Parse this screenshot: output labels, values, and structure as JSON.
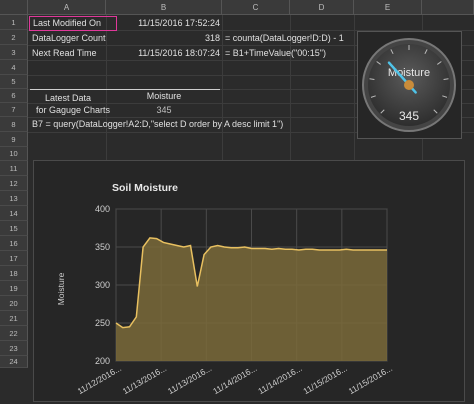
{
  "columns": [
    "A",
    "B",
    "C",
    "D",
    "E"
  ],
  "rows": [
    "1",
    "2",
    "3",
    "4",
    "5",
    "6",
    "7",
    "8",
    "9",
    "10",
    "11",
    "12",
    "13",
    "14",
    "15",
    "16",
    "17",
    "18",
    "19",
    "20",
    "21",
    "22",
    "23",
    "24"
  ],
  "cells": {
    "a1": "Last Modified On",
    "b1": "11/15/2016 17:52:24",
    "a2": "DataLogger Count",
    "b2": "318",
    "c2": "= counta(DataLogger!D:D) - 1",
    "a3": "Next Read Time",
    "b3": "11/15/2016 18:07:24",
    "c3": "= B1+TimeValue(\"00:15\")",
    "a6": "Latest Data",
    "a7": "for Gaguge Charts",
    "b6": "Moisture",
    "b7": "345",
    "a8": "B7 = query(DataLogger!A2:D,\"select D order by A desc limit 1\")"
  },
  "gauge": {
    "label": "Moisture",
    "value": "345",
    "numeric": 345,
    "min": 0,
    "max": 1000
  },
  "chart_data": {
    "type": "area",
    "title": "Soil Moisture",
    "ylabel": "Moisture",
    "xlabel": "",
    "ylim": [
      200,
      400
    ],
    "yticks": [
      200,
      250,
      300,
      350,
      400
    ],
    "xticks": [
      "11/12/2016...",
      "11/13/2016...",
      "11/13/2016...",
      "11/14/2016...",
      "11/14/2016...",
      "11/15/2016...",
      "11/15/2016..."
    ],
    "grid": true,
    "color": "#e8c060",
    "fill": "#7a6a3a",
    "x": [
      0,
      1,
      2,
      3,
      4,
      5,
      6,
      7,
      8,
      9,
      10,
      11,
      12,
      13,
      14,
      15,
      16,
      17,
      18,
      19,
      20,
      21,
      22,
      23,
      24,
      25,
      26,
      27,
      28,
      29,
      30,
      31,
      32,
      33,
      34,
      35,
      36,
      37,
      38,
      39,
      40
    ],
    "values": [
      250,
      244,
      245,
      258,
      350,
      362,
      361,
      356,
      354,
      352,
      350,
      352,
      298,
      340,
      350,
      352,
      350,
      349,
      349,
      350,
      348,
      348,
      348,
      347,
      348,
      347,
      347,
      346,
      347,
      347,
      346,
      346,
      346,
      346,
      347,
      346,
      346,
      346,
      346,
      346,
      346
    ]
  }
}
